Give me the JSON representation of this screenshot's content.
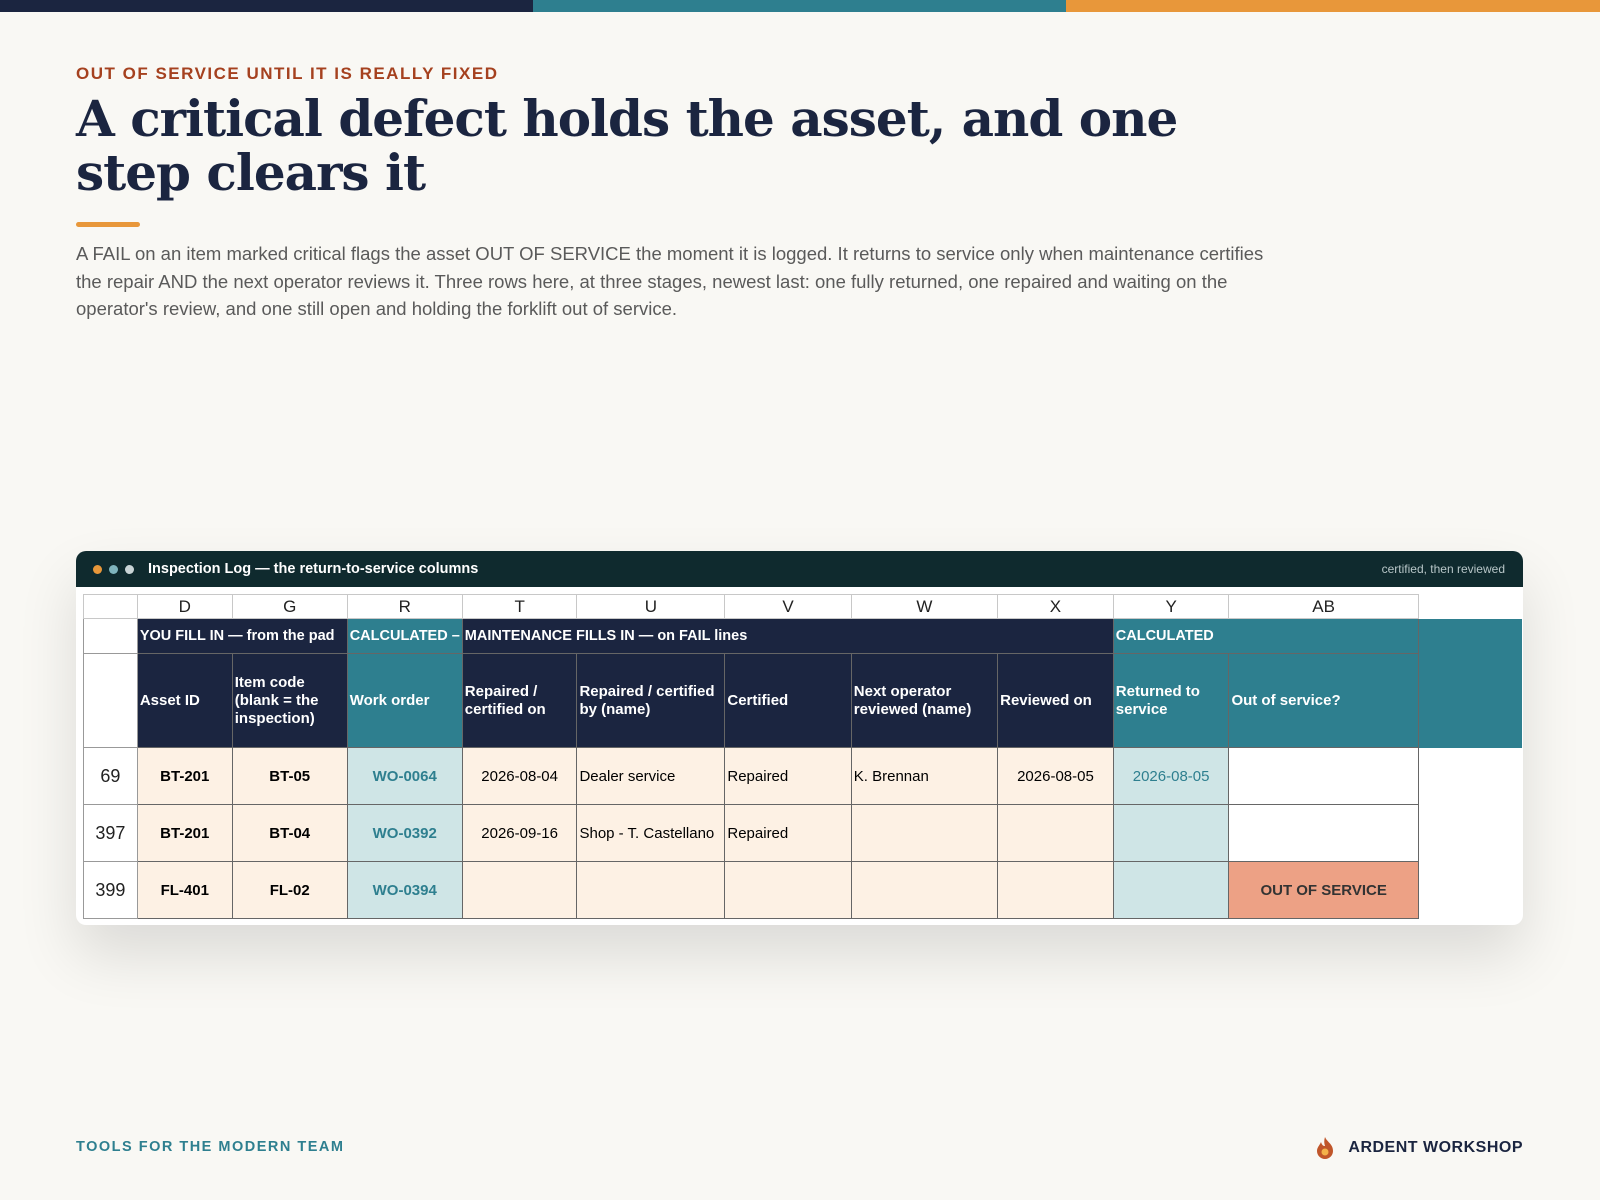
{
  "header": {
    "kicker": "OUT OF SERVICE UNTIL IT IS REALLY FIXED",
    "title": "A critical defect holds the asset, and one step clears it",
    "body": "A FAIL on an item marked critical flags the asset OUT OF SERVICE the moment it is logged. It returns to service only when maintenance certifies the repair AND the next operator reviews it. Three rows here, at three stages, newest last: one fully returned, one repaired and waiting on the operator's review, and one still open and holding the forklift out of service."
  },
  "window": {
    "title": "Inspection Log — the return-to-service columns",
    "note": "certified, then reviewed"
  },
  "sheet": {
    "columns": [
      "D",
      "G",
      "R",
      "T",
      "U",
      "V",
      "W",
      "X",
      "Y",
      "AB"
    ],
    "band_row": 4,
    "bands": [
      "YOU FILL IN — from the pad",
      "CALCULATED –",
      "MAINTENANCE FILLS IN — on FAIL lines",
      "CALCULATED"
    ],
    "header_row": 5,
    "headers": [
      "Asset ID",
      "Item code (blank = the inspection)",
      "Work order",
      "Repaired / certified on",
      "Repaired / certified by (name)",
      "Certified",
      "Next operator reviewed (name)",
      "Reviewed on",
      "Returned to service",
      "Out of service?"
    ],
    "rows": [
      {
        "row": 69,
        "cells": [
          "BT-201",
          "BT-05",
          "WO-0064",
          "2026-08-04",
          "Dealer service",
          "Repaired",
          "K. Brennan",
          "2026-08-05",
          "2026-08-05",
          null
        ]
      },
      {
        "row": 397,
        "cells": [
          "BT-201",
          "BT-04",
          "WO-0392",
          "2026-09-16",
          "Shop - T. Castellano",
          "Repaired",
          null,
          null,
          null,
          null
        ]
      },
      {
        "row": 399,
        "cells": [
          "FL-401",
          "FL-02",
          "WO-0394",
          null,
          null,
          null,
          null,
          null,
          null,
          "OUT OF SERVICE"
        ]
      }
    ]
  },
  "footer": {
    "tagline": "TOOLS FOR THE MODERN TEAM",
    "brand": "ARDENT WORKSHOP"
  }
}
